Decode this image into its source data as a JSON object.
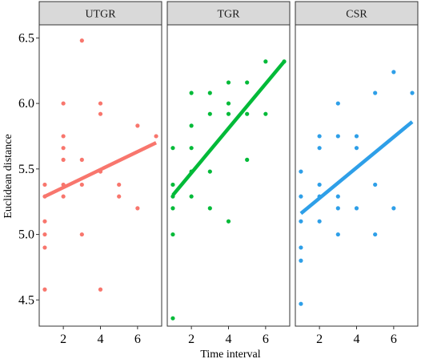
{
  "chart_data": {
    "type": "scatter",
    "xlabel": "Time interval",
    "ylabel": "Euclidean distance",
    "x_ticks": [
      2,
      4,
      6
    ],
    "y_ticks": [
      4.5,
      5.0,
      5.5,
      6.0,
      6.5
    ],
    "x_tick_labels": [
      "2",
      "4",
      "6"
    ],
    "y_tick_labels": [
      "4.5",
      "5.0",
      "5.5",
      "6.0",
      "6.5"
    ],
    "xlim": [
      0.7,
      7.3
    ],
    "ylim": [
      4.3,
      6.6
    ],
    "grid": false,
    "facet_colors": {
      "strip_fill": "#d9d9d9",
      "panel_border": "#333333",
      "tick": "#333333"
    },
    "panels": [
      {
        "label": "UTGR",
        "color": "#F8766D",
        "points": [
          [
            1,
            5.38
          ],
          [
            1,
            5.29
          ],
          [
            1,
            5.1
          ],
          [
            1,
            5.0
          ],
          [
            1,
            4.9
          ],
          [
            1,
            4.58
          ],
          [
            2,
            6.0
          ],
          [
            2,
            5.75
          ],
          [
            2,
            5.66
          ],
          [
            2,
            5.57
          ],
          [
            2,
            5.38
          ],
          [
            2,
            5.29
          ],
          [
            3,
            6.48
          ],
          [
            3,
            5.57
          ],
          [
            3,
            5.38
          ],
          [
            3,
            5.0
          ],
          [
            4,
            6.0
          ],
          [
            4,
            5.92
          ],
          [
            4,
            5.48
          ],
          [
            4,
            4.58
          ],
          [
            5,
            5.38
          ],
          [
            5,
            5.29
          ],
          [
            6,
            5.83
          ],
          [
            6,
            5.2
          ],
          [
            7,
            5.75
          ]
        ],
        "trend": {
          "x": [
            1,
            7
          ],
          "y": [
            5.29,
            5.7
          ]
        }
      },
      {
        "label": "TGR",
        "color": "#00BA38",
        "points": [
          [
            1,
            5.66
          ],
          [
            1,
            5.38
          ],
          [
            1,
            5.29
          ],
          [
            1,
            5.2
          ],
          [
            1,
            5.0
          ],
          [
            1,
            4.36
          ],
          [
            2,
            6.08
          ],
          [
            2,
            5.83
          ],
          [
            2,
            5.66
          ],
          [
            2,
            5.48
          ],
          [
            2,
            5.29
          ],
          [
            3,
            6.08
          ],
          [
            3,
            5.92
          ],
          [
            3,
            5.48
          ],
          [
            3,
            5.2
          ],
          [
            4,
            6.16
          ],
          [
            4,
            6.0
          ],
          [
            4,
            5.92
          ],
          [
            4,
            5.1
          ],
          [
            5,
            6.16
          ],
          [
            5,
            5.92
          ],
          [
            5,
            5.57
          ],
          [
            6,
            6.32
          ],
          [
            6,
            5.92
          ],
          [
            7,
            6.32
          ]
        ],
        "trend": {
          "x": [
            1,
            7
          ],
          "y": [
            5.3,
            6.32
          ]
        }
      },
      {
        "label": "CSR",
        "color": "#2E9FE8",
        "points": [
          [
            1,
            5.48
          ],
          [
            1,
            5.29
          ],
          [
            1,
            5.1
          ],
          [
            1,
            4.9
          ],
          [
            1,
            4.8
          ],
          [
            1,
            4.47
          ],
          [
            2,
            5.75
          ],
          [
            2,
            5.66
          ],
          [
            2,
            5.38
          ],
          [
            2,
            5.29
          ],
          [
            2,
            5.1
          ],
          [
            3,
            6.0
          ],
          [
            3,
            5.75
          ],
          [
            3,
            5.29
          ],
          [
            3,
            5.2
          ],
          [
            3,
            5.0
          ],
          [
            4,
            5.75
          ],
          [
            4,
            5.66
          ],
          [
            4,
            5.2
          ],
          [
            5,
            6.08
          ],
          [
            5,
            5.38
          ],
          [
            5,
            5.0
          ],
          [
            6,
            6.24
          ],
          [
            6,
            5.2
          ],
          [
            7,
            6.08
          ]
        ],
        "trend": {
          "x": [
            1,
            7
          ],
          "y": [
            5.16,
            5.86
          ]
        }
      }
    ]
  }
}
